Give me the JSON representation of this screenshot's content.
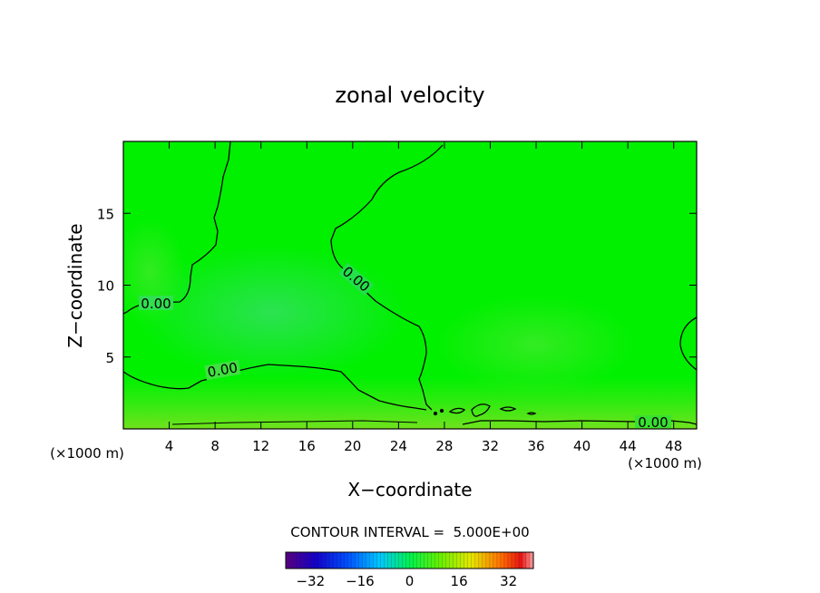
{
  "chart_data": {
    "type": "heatmap",
    "title": "zonal velocity",
    "xlabel": "X−coordinate",
    "ylabel": "Z−coordinate",
    "x_unit_left": "(×1000 m)",
    "x_unit_right": "(×1000 m)",
    "xlim": [
      0,
      50
    ],
    "ylim": [
      0,
      20
    ],
    "x_ticks": [
      4,
      8,
      12,
      16,
      20,
      24,
      28,
      32,
      36,
      40,
      44,
      48
    ],
    "y_ticks": [
      5,
      10,
      15
    ],
    "contour_interval_label": "CONTOUR INTERVAL =  5.000E+00",
    "contour_labels": [
      "0.00",
      "0.00",
      "0.00",
      "0.00"
    ],
    "colorbar": {
      "range": [
        -40,
        40
      ],
      "ticks": [
        -32,
        -16,
        0,
        16,
        32
      ]
    },
    "colors": {
      "background_field": "#00f000",
      "contour": "#000000"
    }
  }
}
